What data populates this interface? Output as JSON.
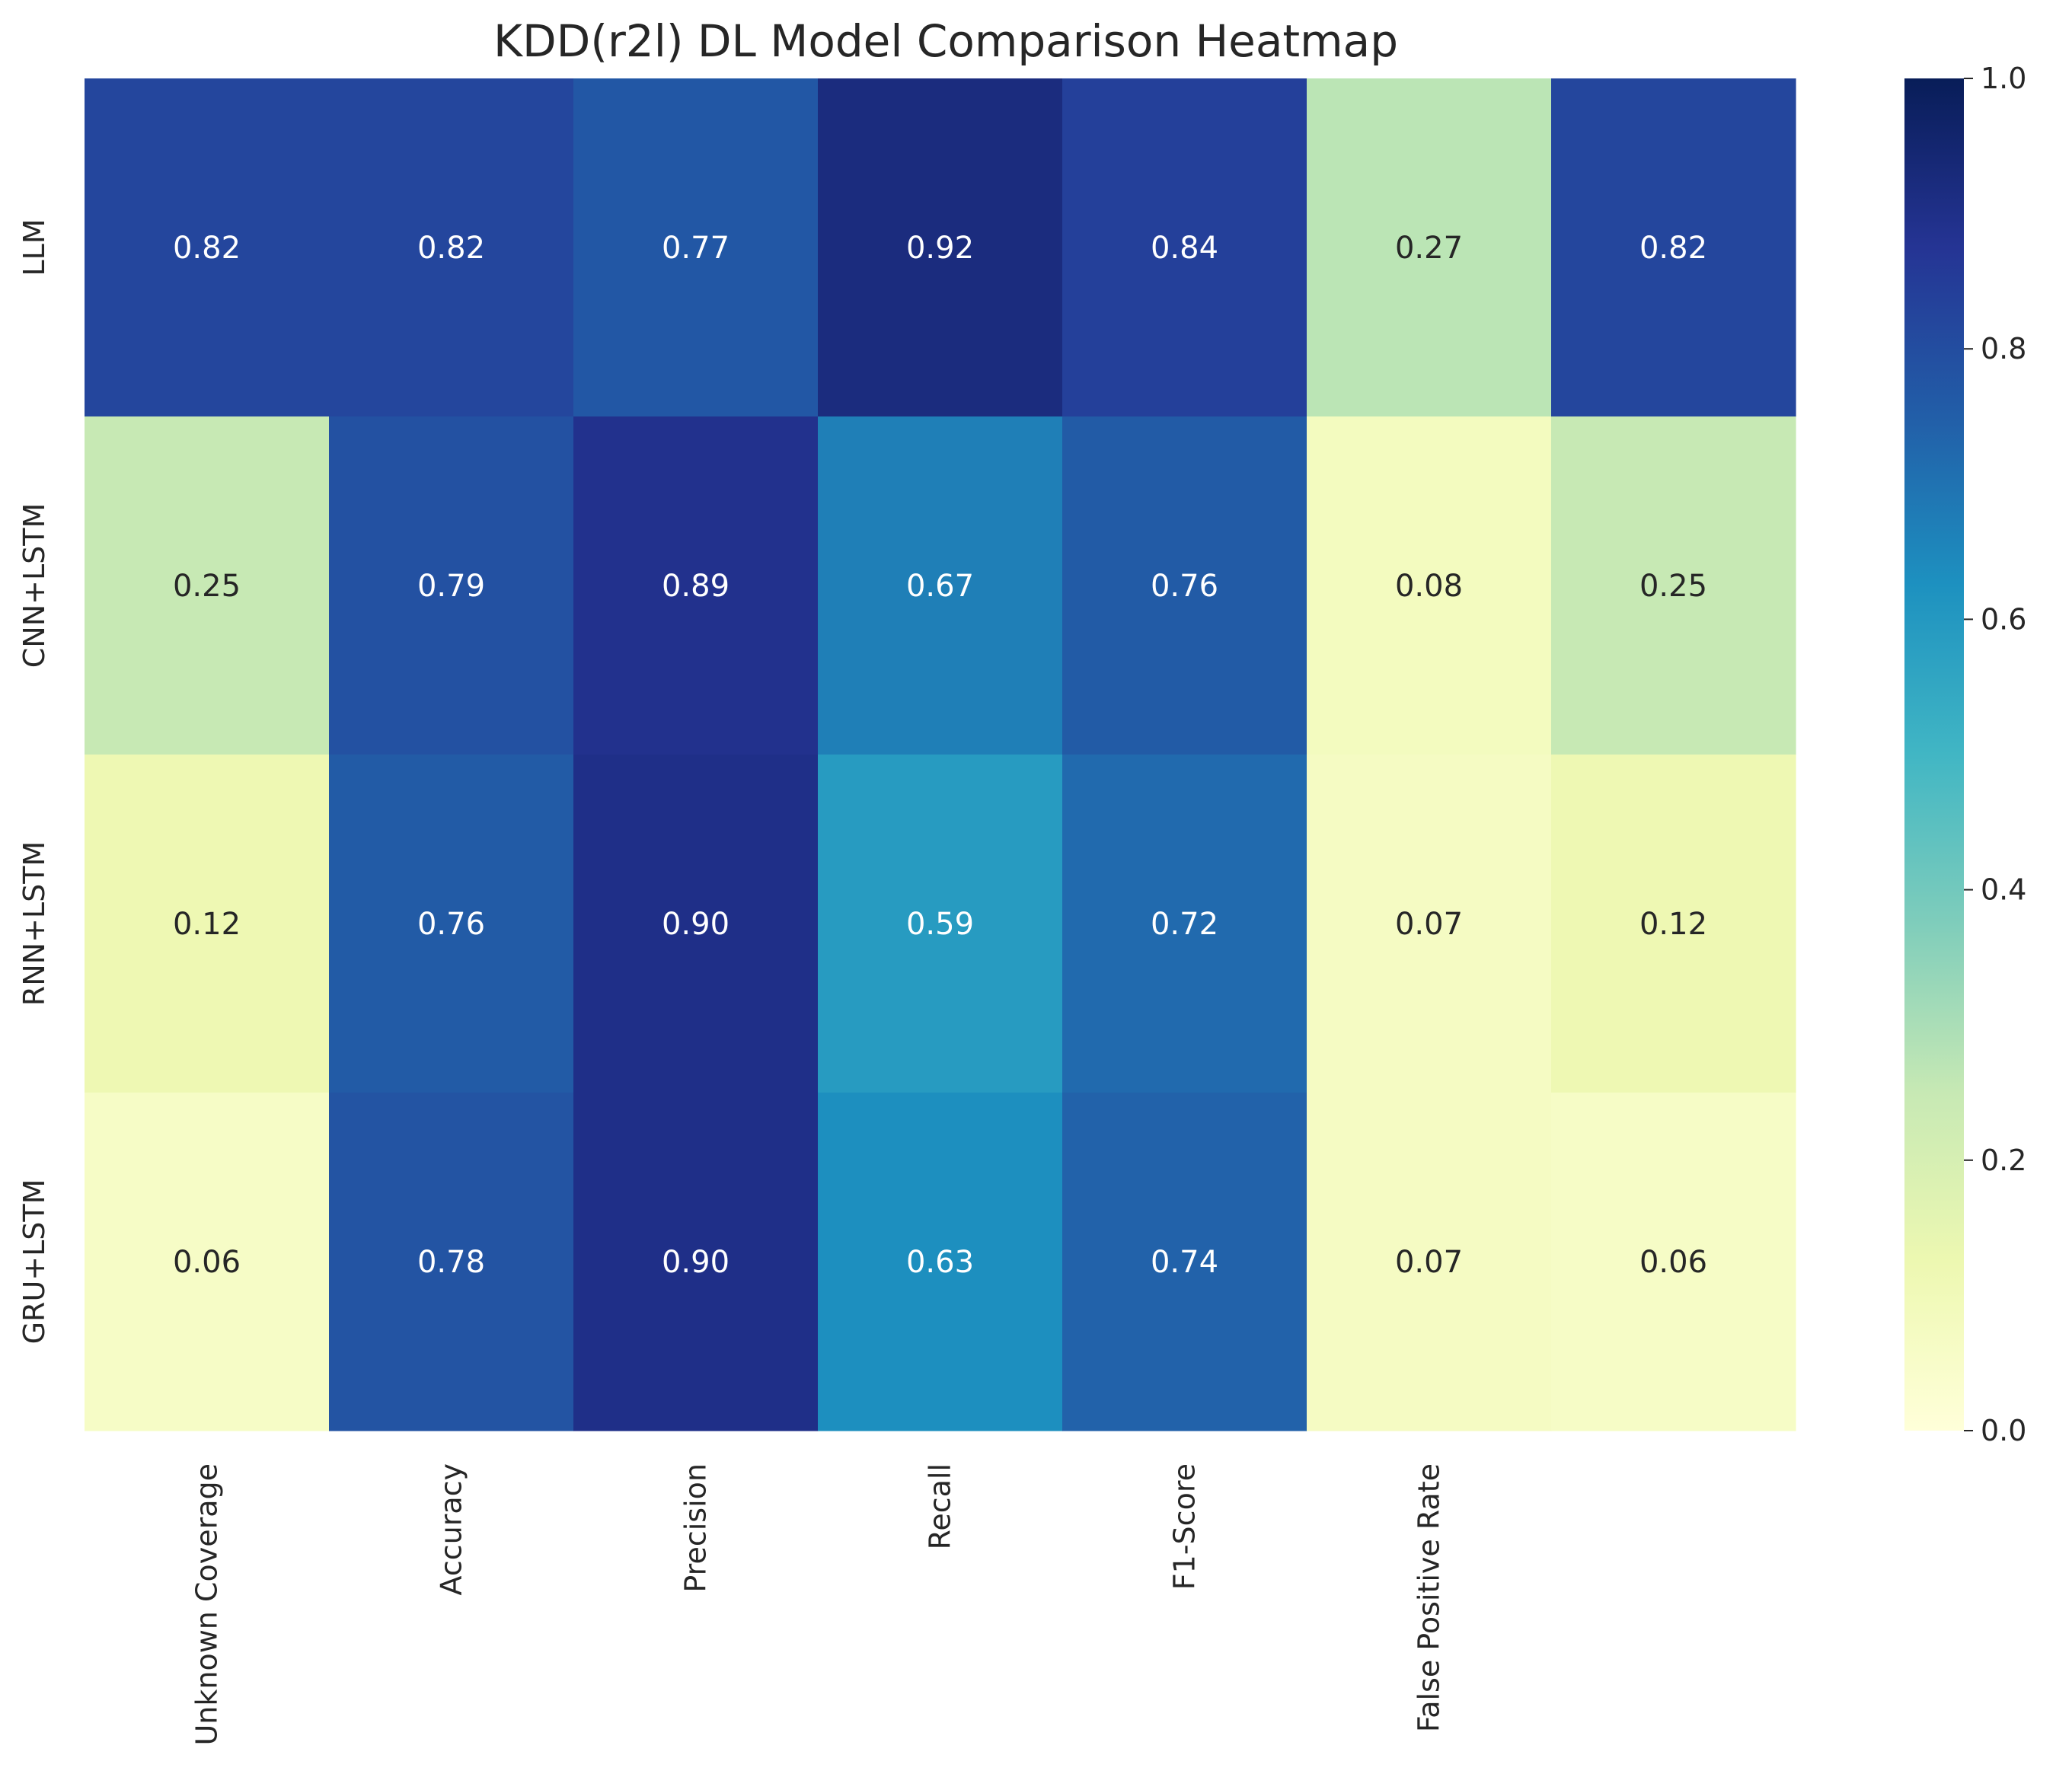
{
  "chart_data": {
    "type": "heatmap",
    "title": "KDD(r2l) DL Model Comparison Heatmap",
    "rows": [
      "LLM",
      "CNN+LSTM",
      "RNN+LSTM",
      "GRU+LSTM"
    ],
    "columns": [
      "Unknown Coverage",
      "Accuracy",
      "Precision",
      "Recall",
      "F1-Score",
      "False Positive Rate",
      ""
    ],
    "values": [
      [
        0.82,
        0.82,
        0.77,
        0.92,
        0.84,
        0.27,
        0.82
      ],
      [
        0.25,
        0.79,
        0.89,
        0.67,
        0.76,
        0.08,
        0.25
      ],
      [
        0.12,
        0.76,
        0.9,
        0.59,
        0.72,
        0.07,
        0.12
      ],
      [
        0.06,
        0.78,
        0.9,
        0.63,
        0.74,
        0.07,
        0.06
      ]
    ],
    "value_format": "0.00",
    "colormap": "YlGnBu",
    "vmin": 0.0,
    "vmax": 1.0,
    "colorbar_ticks": [
      "0.0",
      "0.2",
      "0.4",
      "0.6",
      "0.8",
      "1.0"
    ],
    "grid": false,
    "legend": "colorbar-right"
  }
}
